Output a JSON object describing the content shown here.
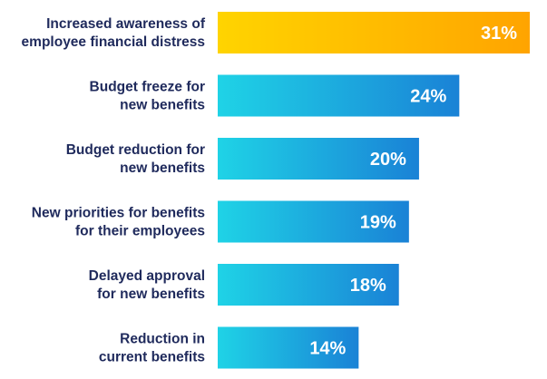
{
  "chart_data": {
    "type": "bar",
    "orientation": "horizontal",
    "categories": [
      "Increased awareness of employee financial distress",
      "Budget freeze for new benefits",
      "Budget reduction for new benefits",
      "New priorities for benefits for their employees",
      "Delayed approval for new benefits",
      "Reduction in current benefits"
    ],
    "category_lines": [
      [
        "Increased awareness of",
        "employee financial distress"
      ],
      [
        "Budget freeze for",
        "new benefits"
      ],
      [
        "Budget reduction for",
        "new benefits"
      ],
      [
        "New priorities for benefits",
        "for their employees"
      ],
      [
        "Delayed approval",
        "for new benefits"
      ],
      [
        "Reduction in",
        "current benefits"
      ]
    ],
    "values": [
      31,
      24,
      20,
      19,
      18,
      14
    ],
    "value_labels": [
      "31%",
      "24%",
      "20%",
      "19%",
      "18%",
      "14%"
    ],
    "unit": "%",
    "xlim": [
      0,
      31
    ],
    "grid": false,
    "legend": "none",
    "highlight_index": 0,
    "colors": {
      "highlight_start": "#FFD400",
      "highlight_end": "#FFA400",
      "bar_start": "#1FD3E6",
      "bar_end": "#1A82D6",
      "label_text": "#1F2A5C",
      "value_text": "#FFFFFF"
    }
  }
}
